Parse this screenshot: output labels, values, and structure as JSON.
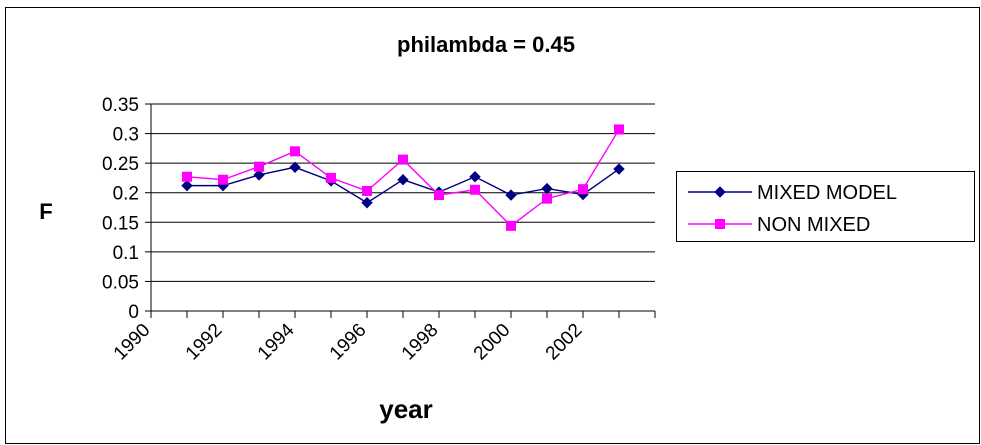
{
  "chart_data": {
    "type": "line",
    "title": "philambda = 0.45",
    "xlabel": "year",
    "ylabel": "F",
    "x": [
      1991,
      1992,
      1993,
      1994,
      1995,
      1996,
      1997,
      1998,
      1999,
      2000,
      2001,
      2002,
      2003
    ],
    "x_ticks": [
      "1990",
      "1992",
      "1994",
      "1996",
      "1998",
      "2000",
      "2002"
    ],
    "xlim": [
      1990,
      2004
    ],
    "y_ticks": [
      "0",
      "0.05",
      "0.1",
      "0.15",
      "0.2",
      "0.25",
      "0.3",
      "0.35"
    ],
    "ylim": [
      0,
      0.35
    ],
    "grid": "horizontal",
    "legend_position": "right",
    "series": [
      {
        "name": "MIXED MODEL",
        "color": "#000080",
        "marker": "diamond",
        "values": [
          0.212,
          0.212,
          0.23,
          0.243,
          0.22,
          0.183,
          0.222,
          0.201,
          0.227,
          0.196,
          0.207,
          0.197,
          0.24
        ]
      },
      {
        "name": "NON MIXED",
        "color": "#ff00ff",
        "marker": "square",
        "values": [
          0.227,
          0.222,
          0.244,
          0.27,
          0.225,
          0.203,
          0.256,
          0.196,
          0.205,
          0.144,
          0.19,
          0.206,
          0.307
        ]
      }
    ]
  }
}
